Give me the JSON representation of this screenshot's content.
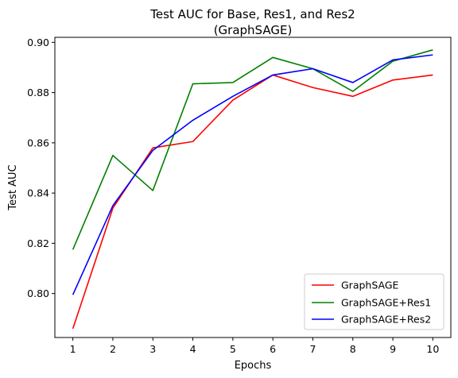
{
  "chart_data": {
    "type": "line",
    "title_line1": "Test AUC for Base, Res1, and Res2",
    "title_line2": "(GraphSAGE)",
    "xlabel": "Epochs",
    "ylabel": "Test AUC",
    "x": [
      1,
      2,
      3,
      4,
      5,
      6,
      7,
      8,
      9,
      10
    ],
    "x_ticks": [
      "1",
      "2",
      "3",
      "4",
      "5",
      "6",
      "7",
      "8",
      "9",
      "10"
    ],
    "y_ticks": [
      "0.80",
      "0.82",
      "0.84",
      "0.86",
      "0.88",
      "0.90"
    ],
    "y_tick_values": [
      0.8,
      0.82,
      0.84,
      0.86,
      0.88,
      0.9
    ],
    "xlim": [
      0.55,
      10.45
    ],
    "ylim": [
      0.7825,
      0.902
    ],
    "grid": false,
    "legend_position": "lower-right",
    "series": [
      {
        "name": "GraphSAGE",
        "color": "#ff0000",
        "values": [
          0.786,
          0.834,
          0.858,
          0.8605,
          0.877,
          0.887,
          0.882,
          0.8785,
          0.885,
          0.887
        ]
      },
      {
        "name": "GraphSAGE+Res1",
        "color": "#008000",
        "values": [
          0.8175,
          0.855,
          0.841,
          0.8835,
          0.884,
          0.894,
          0.8895,
          0.8805,
          0.8925,
          0.897
        ]
      },
      {
        "name": "GraphSAGE+Res2",
        "color": "#0000ff",
        "values": [
          0.7995,
          0.835,
          0.857,
          0.869,
          0.8785,
          0.887,
          0.8895,
          0.884,
          0.893,
          0.895
        ]
      }
    ]
  }
}
